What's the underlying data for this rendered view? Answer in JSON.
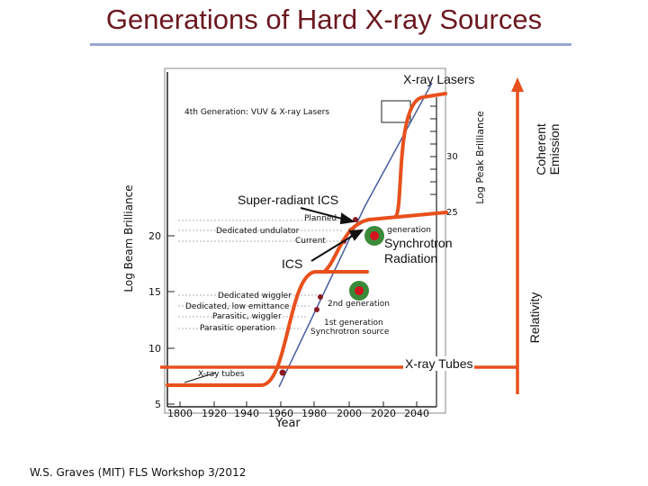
{
  "slide": {
    "title": "Generations of Hard X-ray Sources",
    "footer": "W.S. Graves (MIT) FLS Workshop 3/2012"
  },
  "annotations": {
    "xray_lasers": "X-ray Lasers",
    "super_radiant_ics": "Super-radiant ICS",
    "ics": "ICS",
    "synchrotron_line1": "Synchrotron",
    "synchrotron_line2": "Radiation",
    "xray_tubes": "X-ray Tubes",
    "coherent_line1": "Coherent",
    "coherent_line2": "Emission",
    "relativity": "Relativity"
  },
  "colors": {
    "title": "#6b1820",
    "rule": "#9aa6d3",
    "curve": "#e8501c",
    "dot_red": "#d4141c",
    "dot_ring": "#3a8a3a",
    "trend_line": "#4a5ea0"
  },
  "figure": {
    "ylabel": "Log Beam Brilliance",
    "y2label": "Log Peak Brilliance",
    "xlabel": "Year",
    "xticks": [
      "1800",
      "1920",
      "1940",
      "1960",
      "1980",
      "2000",
      "2020",
      "2040"
    ],
    "yticks": [
      "5",
      "10",
      "15",
      "20"
    ],
    "y2ticks": [
      "25",
      "30"
    ],
    "labels": {
      "fourth_gen": "4th Generation: VUV & X-ray Lasers",
      "planned": "Planned",
      "dedicated_undulator": "Dedicated undulator",
      "current": "Current",
      "generation": "generation",
      "dedicated_wiggler": "Dedicated wiggler",
      "dedicated_low_emittance": "Dedicated, low emittance",
      "parasitic_wiggler": "Parasitic, wiggler",
      "parasitic_operation": "Parasitic operation",
      "second_generation": "2nd generation",
      "first_generation": "1st generation",
      "synchrotron_source": "Synchrotron source",
      "xray_tubes_small": "X-ray tubes"
    }
  }
}
